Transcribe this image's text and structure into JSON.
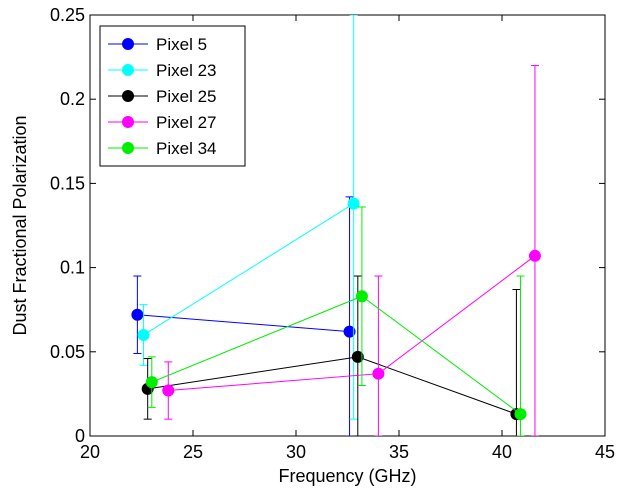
{
  "chart_data": {
    "type": "scatter",
    "xlabel": "Frequency (GHz)",
    "ylabel": "Dust Fractional Polarization",
    "xlim": [
      20,
      45
    ],
    "ylim": [
      0,
      0.25
    ],
    "xticks": [
      20,
      25,
      30,
      35,
      40,
      45
    ],
    "yticks": [
      0,
      0.05,
      0.1,
      0.15,
      0.2,
      0.25
    ],
    "xtick_labels": [
      "20",
      "25",
      "30",
      "35",
      "40",
      "45"
    ],
    "ytick_labels": [
      "0",
      "0.05",
      "0.1",
      "0.15",
      "0.2",
      "0.25"
    ],
    "grid": false,
    "legend_position": "top-left",
    "series": [
      {
        "name": "Pixel 5",
        "color": "#0000ff",
        "x": [
          22.3,
          32.6
        ],
        "y": [
          0.072,
          0.062
        ],
        "err_low": [
          0.049,
          0.0
        ],
        "err_high": [
          0.095,
          0.142
        ]
      },
      {
        "name": "Pixel 23",
        "color": "#00ffff",
        "x": [
          22.6,
          32.8
        ],
        "y": [
          0.06,
          0.138
        ],
        "err_low": [
          0.042,
          0.01
        ],
        "err_high": [
          0.078,
          0.25
        ]
      },
      {
        "name": "Pixel 25",
        "color": "#000000",
        "x": [
          22.8,
          33.0
        ],
        "y": [
          0.028,
          0.047
        ],
        "err_low": [
          0.01,
          0.0
        ],
        "err_high": [
          0.046,
          0.095
        ]
      },
      {
        "name": "Pixel 27",
        "color": "#ff00ff",
        "x": [
          23.8,
          34.0
        ],
        "y": [
          0.027,
          0.037
        ],
        "err_low": [
          0.01,
          0.0
        ],
        "err_high": [
          0.044,
          0.095
        ]
      },
      {
        "name": "Pixel 34",
        "color": "#00ee00",
        "x": [
          23.0,
          33.2
        ],
        "y": [
          0.032,
          0.083
        ],
        "err_low": [
          0.017,
          0.03
        ],
        "err_high": [
          0.047,
          0.136
        ]
      },
      {
        "name": "",
        "color": "#000000",
        "x": [
          40.7
        ],
        "y": [
          0.013
        ],
        "err_low": [
          0.0
        ],
        "err_high": [
          0.087
        ],
        "continues": "Pixel 25"
      },
      {
        "name": "",
        "color": "#ff00ff",
        "x": [
          41.6
        ],
        "y": [
          0.107
        ],
        "err_low": [
          0.0
        ],
        "err_high": [
          0.22
        ],
        "continues": "Pixel 27"
      },
      {
        "name": "",
        "color": "#00ee00",
        "x": [
          40.9
        ],
        "y": [
          0.013
        ],
        "err_low": [
          0.0
        ],
        "err_high": [
          0.095
        ],
        "continues": "Pixel 34"
      }
    ]
  }
}
